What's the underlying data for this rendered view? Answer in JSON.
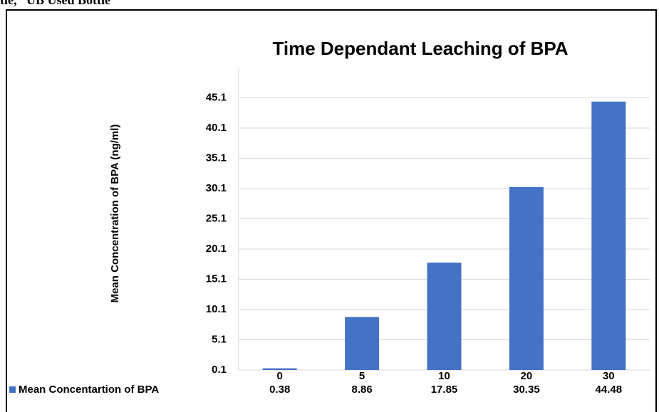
{
  "header_fragment": "tle, “UB Used Bottle",
  "chart_data": {
    "type": "bar",
    "title": "Time Dependant Leaching of BPA",
    "y_label": "Mean Concentration of BPA (ng/ml)",
    "categories": [
      "0",
      "5",
      "10",
      "20",
      "30"
    ],
    "series": [
      {
        "name": "Mean Concentartion of BPA",
        "color": "#4472c4",
        "values": [
          0.38,
          8.86,
          17.85,
          30.35,
          44.48
        ]
      }
    ],
    "ylim": [
      0.1,
      50.1
    ],
    "yticks": [
      0.1,
      5.1,
      10.1,
      15.1,
      20.1,
      25.1,
      30.1,
      35.1,
      40.1,
      45.1
    ],
    "grid": true,
    "data_table": true
  }
}
